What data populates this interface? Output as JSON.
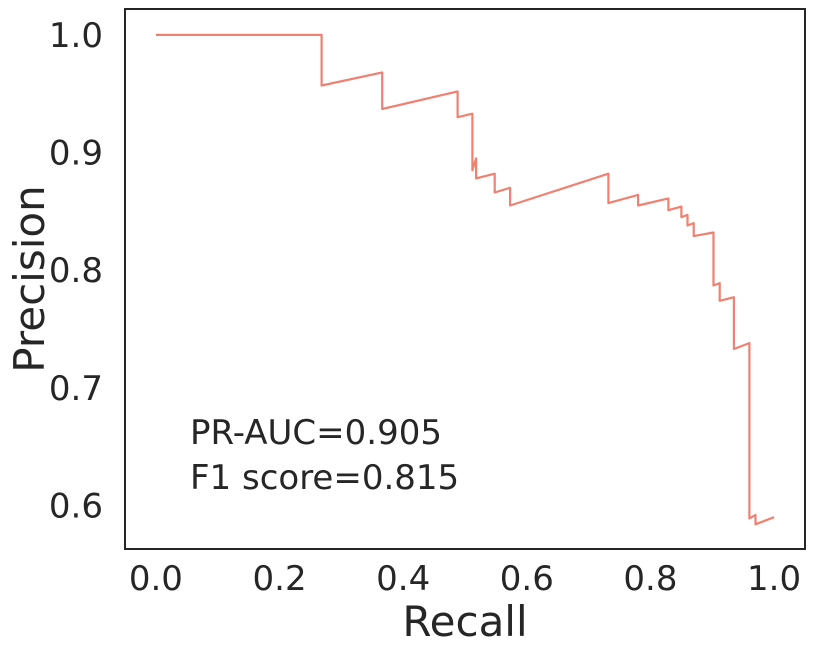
{
  "chart_data": {
    "type": "line",
    "title": "",
    "xlabel": "Recall",
    "ylabel": "Precision",
    "xlim": [
      -0.05,
      1.05
    ],
    "ylim": [
      0.563,
      1.022
    ],
    "xticks": [
      0.0,
      0.2,
      0.4,
      0.6,
      0.8,
      1.0
    ],
    "xtick_labels": [
      "0.0",
      "0.2",
      "0.4",
      "0.6",
      "0.8",
      "1.0"
    ],
    "yticks": [
      0.6,
      0.7,
      0.8,
      0.9,
      1.0
    ],
    "ytick_labels": [
      "0.6",
      "0.7",
      "0.8",
      "0.9",
      "1.0"
    ],
    "grid": false,
    "annotations": [
      "PR-AUC=0.905",
      "F1 score=0.815"
    ],
    "series": [
      {
        "color": "#f08070",
        "points": [
          [
            0.0,
            1.0
          ],
          [
            0.268,
            1.0
          ],
          [
            0.268,
            0.957
          ],
          [
            0.366,
            0.968
          ],
          [
            0.366,
            0.937
          ],
          [
            0.488,
            0.952
          ],
          [
            0.488,
            0.93
          ],
          [
            0.512,
            0.933
          ],
          [
            0.512,
            0.885
          ],
          [
            0.518,
            0.895
          ],
          [
            0.518,
            0.878
          ],
          [
            0.548,
            0.882
          ],
          [
            0.548,
            0.866
          ],
          [
            0.573,
            0.87
          ],
          [
            0.573,
            0.855
          ],
          [
            0.732,
            0.882
          ],
          [
            0.732,
            0.857
          ],
          [
            0.78,
            0.864
          ],
          [
            0.78,
            0.855
          ],
          [
            0.829,
            0.861
          ],
          [
            0.829,
            0.851
          ],
          [
            0.85,
            0.854
          ],
          [
            0.85,
            0.845
          ],
          [
            0.86,
            0.847
          ],
          [
            0.86,
            0.838
          ],
          [
            0.87,
            0.84
          ],
          [
            0.87,
            0.829
          ],
          [
            0.902,
            0.832
          ],
          [
            0.902,
            0.787
          ],
          [
            0.912,
            0.789
          ],
          [
            0.912,
            0.774
          ],
          [
            0.935,
            0.777
          ],
          [
            0.935,
            0.733
          ],
          [
            0.96,
            0.738
          ],
          [
            0.96,
            0.589
          ],
          [
            0.97,
            0.592
          ],
          [
            0.97,
            0.584
          ],
          [
            1.0,
            0.59
          ]
        ]
      }
    ]
  }
}
